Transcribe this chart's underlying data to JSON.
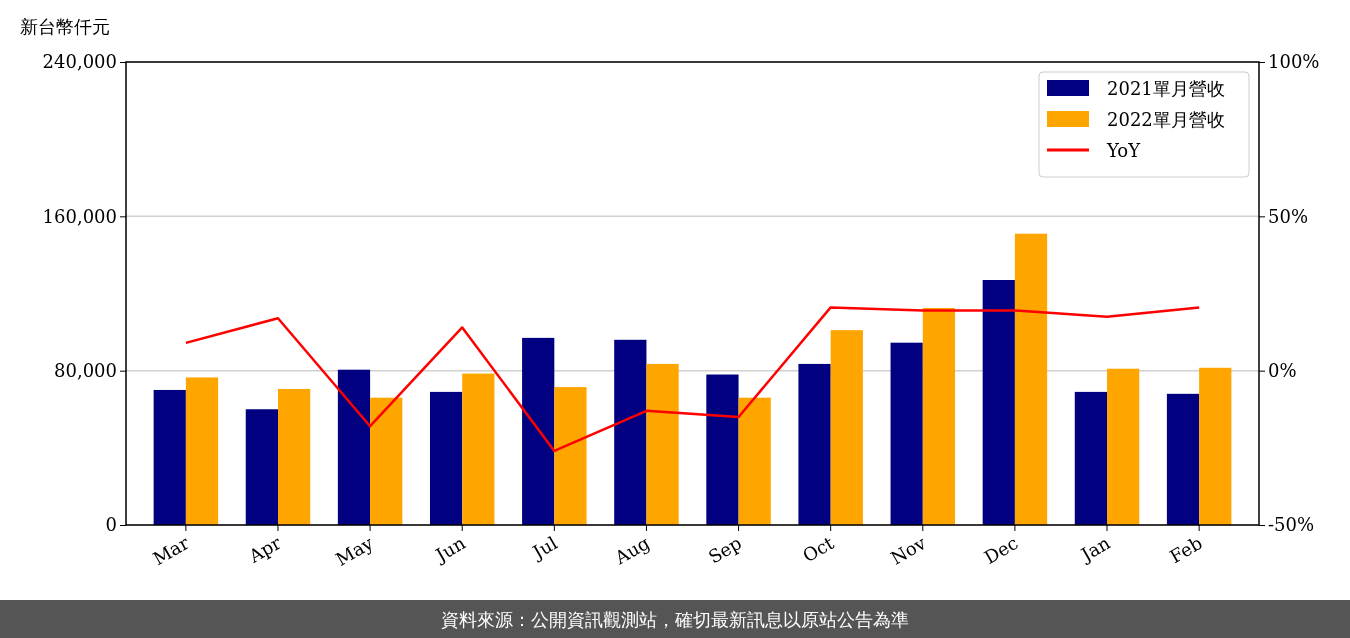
{
  "chart_data": {
    "type": "bar",
    "ylabel": "新台幣仟元",
    "categories": [
      "Mar",
      "Apr",
      "May",
      "Jun",
      "Jul",
      "Aug",
      "Sep",
      "Oct",
      "Nov",
      "Dec",
      "Jan",
      "Feb"
    ],
    "series": [
      {
        "name": "2021單月營收",
        "color": "#000080",
        "values": [
          70000,
          60000,
          80500,
          69000,
          97000,
          96000,
          78000,
          83500,
          94500,
          127000,
          69000,
          68000
        ]
      },
      {
        "name": "2022單月營收",
        "color": "#ffa500",
        "values": [
          76500,
          70500,
          66000,
          78500,
          71500,
          83500,
          66000,
          101000,
          112500,
          151000,
          81000,
          81500
        ]
      },
      {
        "name": "YoY",
        "type": "line",
        "axis": "y2",
        "color": "#ff0000",
        "values": [
          9,
          17,
          -18,
          14,
          -26,
          -13,
          -15,
          20.5,
          19.5,
          19.5,
          17.5,
          20.5
        ]
      }
    ],
    "ylim": [
      0,
      240000
    ],
    "yticks": [
      {
        "value": 0,
        "label": "0"
      },
      {
        "value": 80000,
        "label": "80,000"
      },
      {
        "value": 160000,
        "label": "160,000"
      },
      {
        "value": 240000,
        "label": "240,000"
      }
    ],
    "y2lim": [
      -50,
      100
    ],
    "y2ticks": [
      {
        "value": -50,
        "label": "-50%"
      },
      {
        "value": 0,
        "label": "0%"
      },
      {
        "value": 50,
        "label": "50%"
      },
      {
        "value": 100,
        "label": "100%"
      }
    ],
    "grid": "y",
    "legend": "top right",
    "line_style": "solid",
    "marker": "none",
    "annotations": [
      "資料來源：公開資訊觀測站，確切最新訊息以原站公告為準"
    ]
  }
}
